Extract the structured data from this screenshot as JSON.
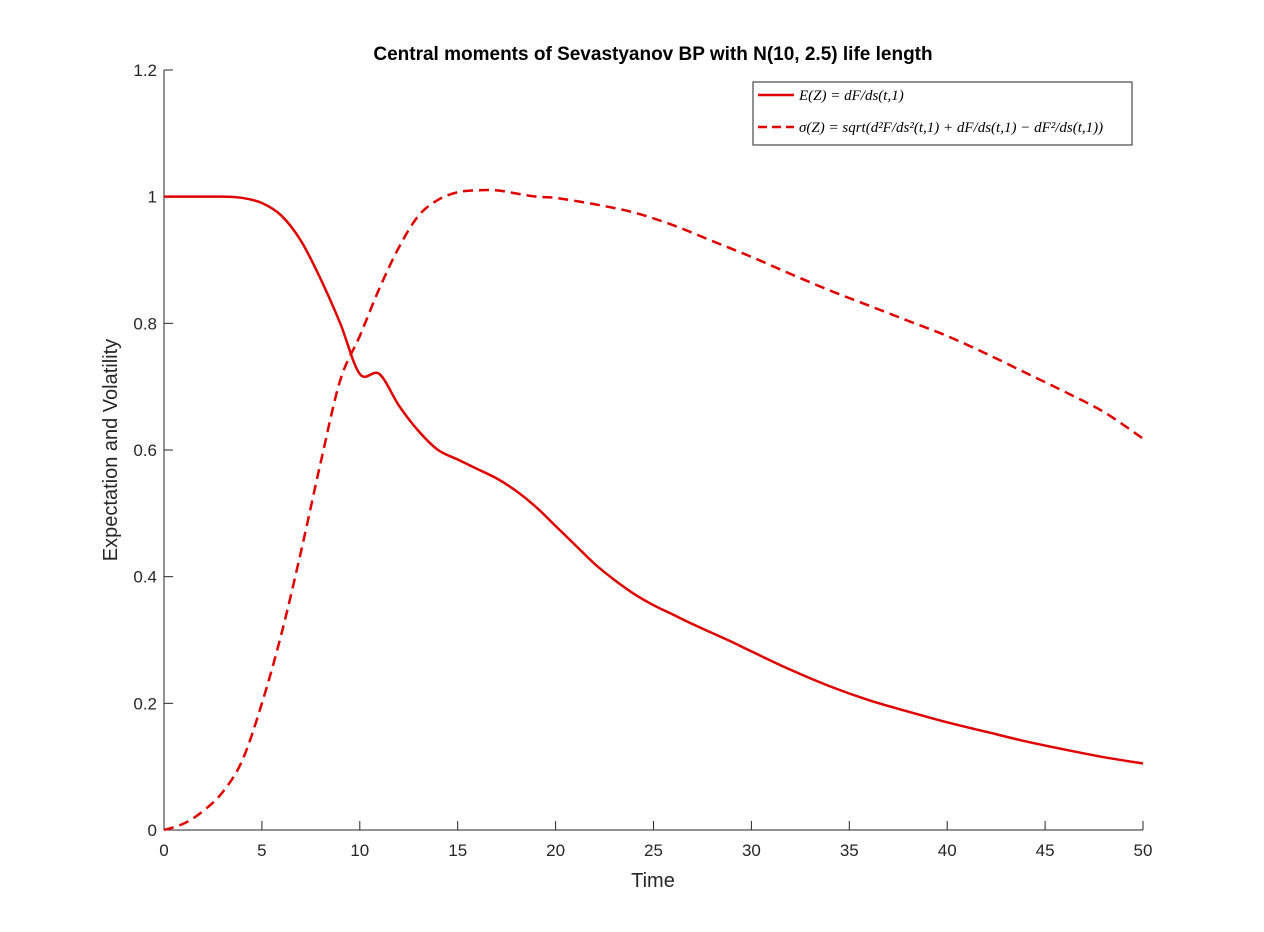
{
  "chart_data": {
    "type": "line",
    "title": "Central moments of Sevastyanov BP with N(10, 2.5) life length",
    "xlabel": "Time",
    "ylabel": "Expectation and Volatility",
    "xlim": [
      0,
      50
    ],
    "ylim": [
      0,
      1.2
    ],
    "xticks": [
      0,
      5,
      10,
      15,
      20,
      25,
      30,
      35,
      40,
      45,
      50
    ],
    "yticks": [
      0,
      0.2,
      0.4,
      0.6,
      0.8,
      1,
      1.2
    ],
    "xtick_labels": [
      "0",
      "5",
      "10",
      "15",
      "20",
      "25",
      "30",
      "35",
      "40",
      "45",
      "50"
    ],
    "ytick_labels": [
      "0",
      "0.2",
      "0.4",
      "0.6",
      "0.8",
      "1",
      "1.2"
    ],
    "grid": false,
    "legend_position": "top-right",
    "series": [
      {
        "name": "E(Z) = dF/ds(t,1)",
        "color": "#e00000",
        "style": "solid",
        "x": [
          0,
          1,
          2,
          3,
          4,
          5,
          6,
          7,
          8,
          9,
          10,
          11,
          12,
          13,
          14,
          15,
          16,
          17,
          18,
          19,
          20,
          21,
          22,
          23,
          24,
          25,
          26,
          27,
          28,
          29,
          30,
          32,
          34,
          36,
          38,
          40,
          42,
          44,
          46,
          48,
          50
        ],
        "y": [
          1.0,
          1.0,
          1.0,
          1.0,
          0.998,
          0.99,
          0.97,
          0.93,
          0.87,
          0.8,
          0.72,
          0.72,
          0.67,
          0.63,
          0.6,
          0.585,
          0.57,
          0.555,
          0.535,
          0.51,
          0.48,
          0.45,
          0.42,
          0.395,
          0.373,
          0.355,
          0.34,
          0.325,
          0.311,
          0.297,
          0.282,
          0.253,
          0.227,
          0.205,
          0.187,
          0.17,
          0.155,
          0.14,
          0.127,
          0.115,
          0.105
        ]
      },
      {
        "name": "σ(Z) = sqrt(d²F/ds²(t,1) + dF/ds(t,1) − dF²/ds(t,1))",
        "color": "#e00000",
        "style": "dashed",
        "x": [
          0,
          1,
          2,
          3,
          4,
          5,
          6,
          7,
          8,
          9,
          10,
          11,
          12,
          13,
          14,
          15,
          16,
          17,
          18,
          19,
          20,
          22,
          24,
          26,
          28,
          30,
          32,
          34,
          36,
          38,
          40,
          42,
          44,
          46,
          48,
          50
        ],
        "y": [
          0.0,
          0.01,
          0.03,
          0.06,
          0.11,
          0.2,
          0.31,
          0.44,
          0.58,
          0.71,
          0.78,
          0.855,
          0.92,
          0.97,
          0.995,
          1.007,
          1.01,
          1.01,
          1.005,
          1.0,
          0.998,
          0.988,
          0.975,
          0.955,
          0.93,
          0.905,
          0.878,
          0.852,
          0.828,
          0.804,
          0.78,
          0.752,
          0.722,
          0.692,
          0.66,
          0.618
        ]
      }
    ]
  }
}
